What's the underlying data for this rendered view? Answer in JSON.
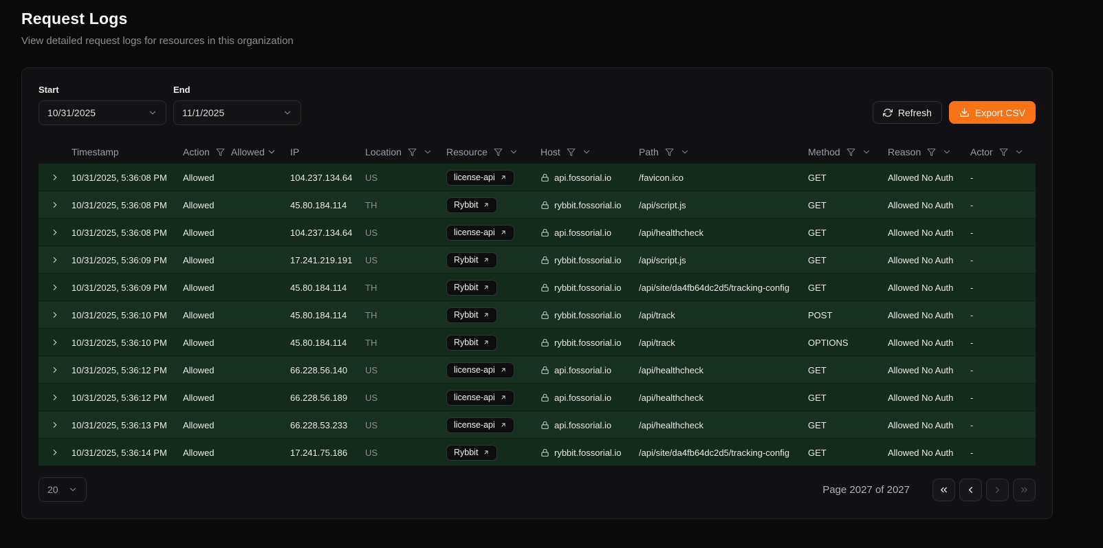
{
  "page": {
    "title": "Request Logs",
    "subtitle": "View detailed request logs for resources in this organization"
  },
  "toolbar": {
    "start_label": "Start",
    "start_value": "10/31/2025",
    "end_label": "End",
    "end_value": "11/1/2025",
    "refresh_label": "Refresh",
    "export_csv_label": "Export CSV"
  },
  "table": {
    "columns": [
      "Timestamp",
      "Action",
      "IP",
      "Location",
      "Resource",
      "Host",
      "Path",
      "Method",
      "Reason",
      "Actor"
    ],
    "action_filter_value": "Allowed",
    "rows": [
      {
        "timestamp": "10/31/2025, 5:36:08 PM",
        "action": "Allowed",
        "ip": "104.237.134.64",
        "location": "US",
        "resource": "license-api",
        "host": "api.fossorial.io",
        "path": "/favicon.ico",
        "method": "GET",
        "reason": "Allowed No Auth",
        "actor": "-"
      },
      {
        "timestamp": "10/31/2025, 5:36:08 PM",
        "action": "Allowed",
        "ip": "45.80.184.114",
        "location": "TH",
        "resource": "Rybbit",
        "host": "rybbit.fossorial.io",
        "path": "/api/script.js",
        "method": "GET",
        "reason": "Allowed No Auth",
        "actor": "-"
      },
      {
        "timestamp": "10/31/2025, 5:36:08 PM",
        "action": "Allowed",
        "ip": "104.237.134.64",
        "location": "US",
        "resource": "license-api",
        "host": "api.fossorial.io",
        "path": "/api/healthcheck",
        "method": "GET",
        "reason": "Allowed No Auth",
        "actor": "-"
      },
      {
        "timestamp": "10/31/2025, 5:36:09 PM",
        "action": "Allowed",
        "ip": "17.241.219.191",
        "location": "US",
        "resource": "Rybbit",
        "host": "rybbit.fossorial.io",
        "path": "/api/script.js",
        "method": "GET",
        "reason": "Allowed No Auth",
        "actor": "-"
      },
      {
        "timestamp": "10/31/2025, 5:36:09 PM",
        "action": "Allowed",
        "ip": "45.80.184.114",
        "location": "TH",
        "resource": "Rybbit",
        "host": "rybbit.fossorial.io",
        "path": "/api/site/da4fb64dc2d5/tracking-config",
        "method": "GET",
        "reason": "Allowed No Auth",
        "actor": "-"
      },
      {
        "timestamp": "10/31/2025, 5:36:10 PM",
        "action": "Allowed",
        "ip": "45.80.184.114",
        "location": "TH",
        "resource": "Rybbit",
        "host": "rybbit.fossorial.io",
        "path": "/api/track",
        "method": "POST",
        "reason": "Allowed No Auth",
        "actor": "-"
      },
      {
        "timestamp": "10/31/2025, 5:36:10 PM",
        "action": "Allowed",
        "ip": "45.80.184.114",
        "location": "TH",
        "resource": "Rybbit",
        "host": "rybbit.fossorial.io",
        "path": "/api/track",
        "method": "OPTIONS",
        "reason": "Allowed No Auth",
        "actor": "-"
      },
      {
        "timestamp": "10/31/2025, 5:36:12 PM",
        "action": "Allowed",
        "ip": "66.228.56.140",
        "location": "US",
        "resource": "license-api",
        "host": "api.fossorial.io",
        "path": "/api/healthcheck",
        "method": "GET",
        "reason": "Allowed No Auth",
        "actor": "-"
      },
      {
        "timestamp": "10/31/2025, 5:36:12 PM",
        "action": "Allowed",
        "ip": "66.228.56.189",
        "location": "US",
        "resource": "license-api",
        "host": "api.fossorial.io",
        "path": "/api/healthcheck",
        "method": "GET",
        "reason": "Allowed No Auth",
        "actor": "-"
      },
      {
        "timestamp": "10/31/2025, 5:36:13 PM",
        "action": "Allowed",
        "ip": "66.228.53.233",
        "location": "US",
        "resource": "license-api",
        "host": "api.fossorial.io",
        "path": "/api/healthcheck",
        "method": "GET",
        "reason": "Allowed No Auth",
        "actor": "-"
      },
      {
        "timestamp": "10/31/2025, 5:36:14 PM",
        "action": "Allowed",
        "ip": "17.241.75.186",
        "location": "US",
        "resource": "Rybbit",
        "host": "rybbit.fossorial.io",
        "path": "/api/site/da4fb64dc2d5/tracking-config",
        "method": "GET",
        "reason": "Allowed No Auth",
        "actor": "-"
      }
    ]
  },
  "footer": {
    "page_size": "20",
    "page_info": "Page 2027 of 2027"
  },
  "colors": {
    "accent_orange": "#f97316",
    "row_green_odd": "#142a1b",
    "row_green_even": "#183020",
    "card_background": "#111113",
    "page_background": "#0a0a0b"
  },
  "icons": {
    "refresh-icon": "⟳",
    "download-icon": "⤓",
    "chevron-down-icon": "⌄",
    "chevron-right-icon": "›",
    "filter-icon": "funnel",
    "lock-icon": "padlock",
    "external-link-icon": "↗",
    "first-page-icon": "«",
    "prev-page-icon": "‹",
    "next-page-icon": "›",
    "last-page-icon": "»"
  }
}
